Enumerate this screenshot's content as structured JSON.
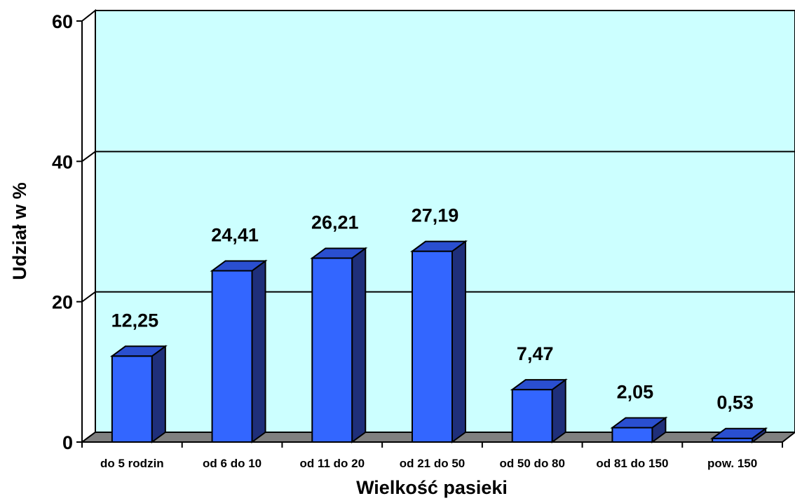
{
  "chart_data": {
    "type": "bar",
    "style": "3d-column",
    "title": "",
    "xlabel": "Wielkość pasieki",
    "ylabel": "Udział w %",
    "categories": [
      "do 5 rodzin",
      "od 6 do 10",
      "od 11 do 20",
      "od 21 do 50",
      "od 50 do 80",
      "od 81 do 150",
      "pow. 150"
    ],
    "value_labels": [
      "12,25",
      "24,41",
      "26,21",
      "27,19",
      "7,47",
      "2,05",
      "0,53"
    ],
    "series": [
      {
        "values": [
          12.25,
          24.41,
          26.21,
          27.19,
          7.47,
          2.05,
          0.53
        ]
      }
    ],
    "ylim": [
      0,
      60
    ],
    "yticks": [
      0,
      20,
      40,
      60
    ],
    "ytick_labels": [
      "0",
      "20",
      "40",
      "60"
    ],
    "grid": true,
    "legend": "none",
    "colors": {
      "bar_front": "#3366FF",
      "bar_top": "#2A4FD0",
      "bar_side": "#1F2F7A",
      "back_wall": "#CCFFFF",
      "floor": "#808080",
      "outline": "#000000"
    }
  }
}
